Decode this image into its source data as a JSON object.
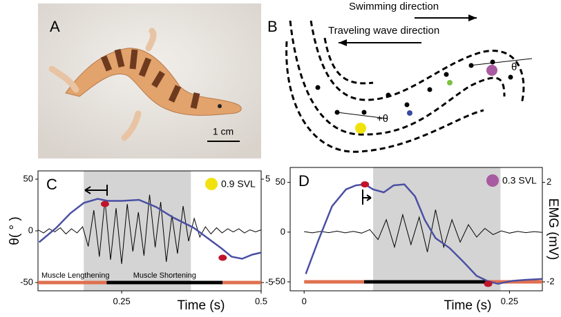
{
  "panels": {
    "a": {
      "label": "A",
      "scale_bar": "1 cm"
    },
    "b": {
      "label": "B",
      "swimming": "Swimming direction",
      "wave": "Traveling wave direction",
      "theta_plus": "+θ",
      "theta": "θ"
    }
  },
  "chart_data": [
    {
      "type": "line",
      "label": "C",
      "ylabel": "θ( ° )",
      "xlabel": "Time (s)",
      "xlim": [
        0.1,
        0.5
      ],
      "xticks": [
        0.25,
        0.5
      ],
      "ylim": [
        -58,
        58
      ],
      "yticks": [
        -50,
        0,
        50
      ],
      "y2lim": [
        -5.8,
        5.8
      ],
      "y2ticks": [
        -5,
        5
      ],
      "shaded_x": [
        0.182,
        0.374
      ],
      "shade_color": "#d4d4d4",
      "legend": {
        "label": "0.9 SVL",
        "color": "#f2e20c"
      },
      "series": [
        {
          "color": "#4a4fa3",
          "x": [
            0.102,
            0.133,
            0.158,
            0.182,
            0.207,
            0.225,
            0.25,
            0.281,
            0.312,
            0.342,
            0.379,
            0.404,
            0.429,
            0.447,
            0.466,
            0.484,
            0.5
          ],
          "values": [
            -11,
            3,
            17,
            27,
            31,
            29,
            29,
            30,
            23,
            13,
            3,
            -7,
            -17,
            -25,
            -27,
            -23,
            -21
          ]
        },
        {
          "color": "#000000",
          "axis": "y2",
          "x": [
            0.1,
            0.11,
            0.12,
            0.13,
            0.14,
            0.15,
            0.16,
            0.17,
            0.18,
            0.19,
            0.2,
            0.21,
            0.22,
            0.23,
            0.24,
            0.25,
            0.26,
            0.27,
            0.28,
            0.29,
            0.3,
            0.31,
            0.32,
            0.33,
            0.34,
            0.35,
            0.36,
            0.37,
            0.38,
            0.39,
            0.4,
            0.41,
            0.42,
            0.43,
            0.44,
            0.45,
            0.46,
            0.47,
            0.48,
            0.49,
            0.5
          ],
          "values": [
            0.1,
            -0.2,
            0.2,
            -0.1,
            0.3,
            -0.3,
            0.2,
            -0.2,
            0.4,
            -1.5,
            2.0,
            -2.5,
            3.0,
            -2.8,
            2.2,
            -3.2,
            2.6,
            -2.0,
            1.8,
            -2.4,
            3.5,
            -1.6,
            2.8,
            -3.0,
            1.5,
            -2.2,
            2.4,
            -1.0,
            1.2,
            -0.6,
            0.4,
            -0.3,
            0.3,
            -0.2,
            0.2,
            -0.1,
            0.2,
            -0.2,
            0.1,
            -0.1,
            0.1
          ]
        }
      ],
      "points": {
        "color": "#c0142a",
        "x": [
          0.22,
          0.431
        ],
        "values": [
          26,
          -26
        ]
      },
      "phase_level": -50,
      "phases": [
        {
          "label": "Muscle Lengthening",
          "start": 0.1,
          "end": 0.223,
          "color": "#e0704f"
        },
        {
          "label": "Muscle Shortening",
          "start": 0.223,
          "end": 0.431,
          "color": "#000000"
        },
        {
          "start": 0.431,
          "end": 0.5,
          "color": "#e0704f"
        }
      ]
    },
    {
      "type": "line",
      "label": "D",
      "y2label": "EMG (mV)",
      "xlabel": "Time (s)",
      "xlim": [
        -0.017,
        0.29
      ],
      "xticks": [
        0,
        0.25
      ],
      "ylim": [
        -59,
        65
      ],
      "yticks": [
        -50,
        0,
        50
      ],
      "y2lim": [
        -2.36,
        2.6
      ],
      "y2ticks": [
        -2,
        2
      ],
      "shaded_x": [
        0.084,
        0.239
      ],
      "shade_color": "#d4d4d4",
      "legend": {
        "label": "0.3 SVL",
        "color": "#a85ba0"
      },
      "series": [
        {
          "color": "#4a4fa3",
          "x": [
            0.002,
            0.017,
            0.034,
            0.051,
            0.063,
            0.074,
            0.084,
            0.097,
            0.109,
            0.122,
            0.135,
            0.147,
            0.16,
            0.177,
            0.194,
            0.21,
            0.223,
            0.236,
            0.253,
            0.269,
            0.29
          ],
          "values": [
            -42,
            -9,
            26,
            43,
            47,
            48,
            43,
            40,
            47,
            48,
            36,
            12,
            -6,
            -16,
            -30,
            -44,
            -49,
            -52,
            -49,
            -48,
            -47
          ]
        },
        {
          "color": "#000000",
          "axis": "y2",
          "x": [
            0,
            0.01,
            0.02,
            0.03,
            0.04,
            0.05,
            0.06,
            0.07,
            0.08,
            0.09,
            0.1,
            0.11,
            0.12,
            0.13,
            0.14,
            0.15,
            0.16,
            0.17,
            0.18,
            0.19,
            0.2,
            0.21,
            0.22,
            0.23,
            0.24,
            0.25,
            0.26,
            0.27,
            0.28,
            0.29
          ],
          "values": [
            0.02,
            -0.03,
            0.03,
            -0.02,
            0.04,
            -0.03,
            0.03,
            -0.04,
            0.1,
            -0.3,
            0.5,
            -0.6,
            0.7,
            -0.5,
            0.6,
            -0.8,
            0.9,
            -0.6,
            0.5,
            -0.4,
            0.3,
            -0.2,
            0.15,
            -0.1,
            0.05,
            -0.04,
            0.03,
            -0.02,
            0.02,
            -0.01
          ]
        }
      ],
      "points": {
        "color": "#c0142a",
        "x": [
          0.074,
          0.224
        ],
        "values": [
          48,
          -52
        ]
      },
      "phase_level": -50,
      "phases": [
        {
          "start": 0,
          "end": 0.073,
          "color": "#e0704f"
        },
        {
          "start": 0.073,
          "end": 0.224,
          "color": "#000000"
        },
        {
          "start": 0.224,
          "end": 0.29,
          "color": "#e0704f"
        }
      ]
    }
  ]
}
